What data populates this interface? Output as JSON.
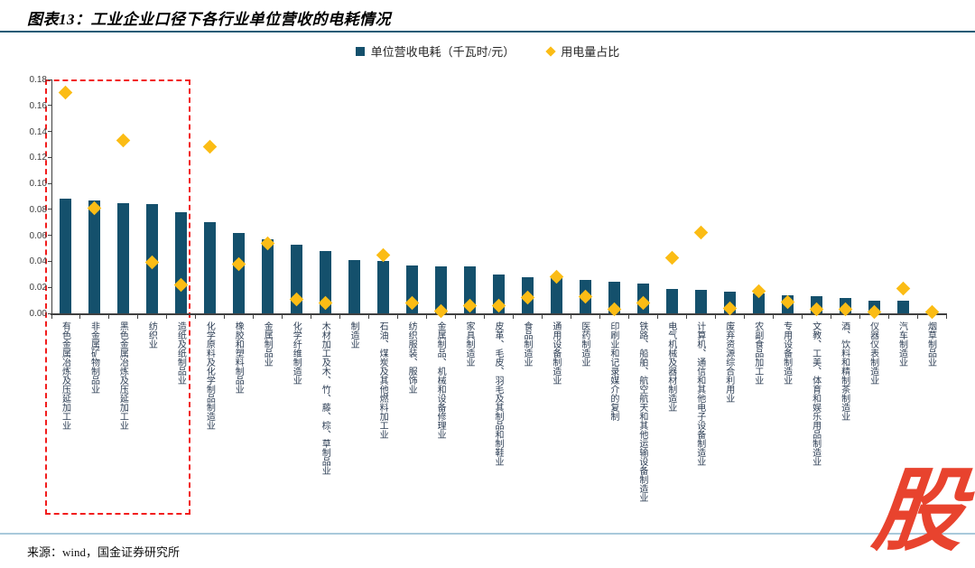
{
  "header": {
    "title": "图表13：工业企业口径下各行业单位营收的电耗情况"
  },
  "legend": {
    "bar_label": "单位营收电耗（千瓦时/元）",
    "scatter_label": "用电量占比"
  },
  "chart_data": {
    "type": "bar",
    "title": "工业企业口径下各行业单位营收的电耗情况",
    "xlabel": "",
    "ylabel": "",
    "ylim": [
      0,
      0.18
    ],
    "ytick_step": 0.02,
    "grid": false,
    "legend_position": "top",
    "categories": [
      "有色金属冶炼及压延加工业",
      "非金属矿物制品业",
      "黑色金属冶炼及压延加工业",
      "纺织业",
      "造纸及纸制品业",
      "化学原料及化学制品制造业",
      "橡胶和塑料制品业",
      "金属制品业",
      "化学纤维制造业",
      "木材加工及木、竹、藤、棕、草制品业",
      "制造业",
      "石油、煤炭及其他燃料加工业",
      "纺织服装、服饰业",
      "金属制品、机械和设备修理业",
      "家具制造业",
      "皮革、毛皮、羽毛及其制品和制鞋业",
      "食品制造业",
      "通用设备制造业",
      "医药制造业",
      "印刷业和记录媒介的复制",
      "铁路、船舶、航空航天和其他运输设备制造业",
      "电气机械及器材制造业",
      "计算机、通信和其他电子设备制造业",
      "废弃资源综合利用业",
      "农副食品加工业",
      "专用设备制造业",
      "文教、工美、体育和娱乐用品制造业",
      "酒、饮料和精制茶制造业",
      "仪器仪表制造业",
      "汽车制造业",
      "烟草制品业"
    ],
    "series": [
      {
        "name": "单位营收电耗（千瓦时/元）",
        "type": "bar",
        "color": "#14506C",
        "values": [
          0.088,
          0.087,
          0.085,
          0.084,
          0.078,
          0.07,
          0.062,
          0.057,
          0.053,
          0.048,
          0.041,
          0.04,
          0.037,
          0.036,
          0.036,
          0.03,
          0.028,
          0.027,
          0.026,
          0.024,
          0.023,
          0.019,
          0.018,
          0.017,
          0.015,
          0.014,
          0.013,
          0.012,
          0.01,
          0.01,
          0.001
        ]
      },
      {
        "name": "用电量占比",
        "type": "scatter",
        "color": "#FBBC15",
        "values": [
          0.17,
          0.081,
          0.133,
          0.039,
          0.022,
          0.128,
          0.038,
          0.054,
          0.011,
          0.008,
          null,
          0.045,
          0.008,
          0.002,
          0.006,
          0.006,
          0.012,
          0.028,
          0.013,
          0.003,
          0.008,
          0.043,
          0.062,
          0.004,
          0.017,
          0.009,
          0.003,
          0.003,
          0.001,
          0.019,
          0.001
        ]
      }
    ],
    "highlight_box": {
      "from_index": 0,
      "to_index": 4,
      "style": "red-dashed"
    }
  },
  "footer": {
    "source": "来源：wind，国金证券研究所"
  },
  "logo": {
    "text": "股",
    "color": "#E8432E"
  },
  "colors": {
    "bar": "#14506C",
    "diamond": "#FBBC15",
    "highlight": "#F21D1D",
    "title_underline": "#1E5B75",
    "footer_line": "#A9C9DB"
  }
}
